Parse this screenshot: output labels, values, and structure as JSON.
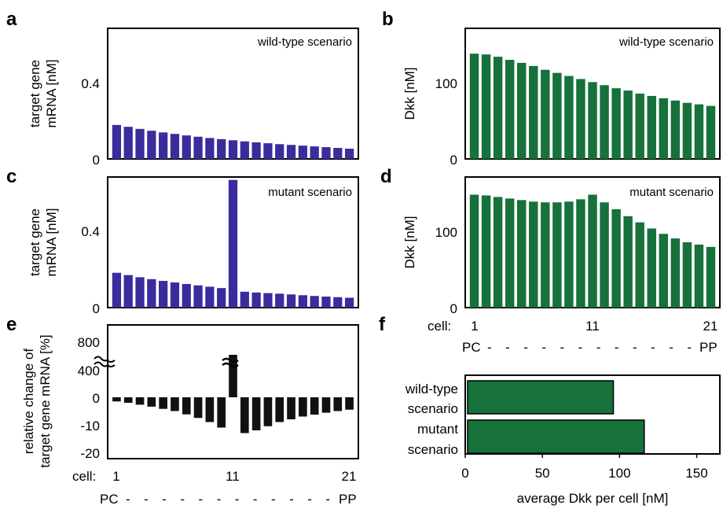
{
  "colors": {
    "mrna": "#3a2c9c",
    "dkk": "#16713a",
    "change": "#111111"
  },
  "panels": {
    "a": "a",
    "b": "b",
    "c": "c",
    "d": "d",
    "e": "e",
    "f": "f"
  },
  "cell_axis": {
    "prefix": "cell:",
    "ticks": [
      "1",
      "11",
      "21"
    ],
    "start": "PC",
    "end": "PP",
    "dashes": "- - - - - - - - - - - -"
  },
  "chart_data": [
    {
      "panel": "a",
      "type": "bar",
      "title": "wild-type scenario",
      "ylabel": [
        "target gene",
        "mRNA [nM]"
      ],
      "yticks": [
        "0.4",
        "0"
      ],
      "ytick_values": [
        0.4,
        0
      ],
      "ylim": [
        0,
        0.7
      ],
      "x": [
        1,
        2,
        3,
        4,
        5,
        6,
        7,
        8,
        9,
        10,
        11,
        12,
        13,
        14,
        15,
        16,
        17,
        18,
        19,
        20,
        21
      ],
      "values": [
        0.182,
        0.172,
        0.161,
        0.151,
        0.142,
        0.134,
        0.126,
        0.119,
        0.112,
        0.106,
        0.1,
        0.094,
        0.089,
        0.084,
        0.079,
        0.075,
        0.071,
        0.067,
        0.063,
        0.059,
        0.055
      ]
    },
    {
      "panel": "b",
      "type": "bar",
      "title": "wild-type scenario",
      "ylabel": [
        "Dkk [nM]"
      ],
      "yticks": [
        "100",
        "0"
      ],
      "ytick_values": [
        100,
        0
      ],
      "ylim": [
        0,
        170
      ],
      "x": [
        1,
        2,
        3,
        4,
        5,
        6,
        7,
        8,
        9,
        10,
        11,
        12,
        13,
        14,
        15,
        16,
        17,
        18,
        19,
        20,
        21
      ],
      "values": [
        137,
        136,
        133,
        129,
        125,
        121,
        116,
        112,
        108,
        104,
        100,
        96,
        92,
        89,
        85,
        82,
        79,
        76,
        73,
        71,
        69
      ]
    },
    {
      "panel": "c",
      "type": "bar",
      "title": "mutant scenario",
      "ylabel": [
        "target gene",
        "mRNA [nM]"
      ],
      "yticks": [
        "0.4",
        "0"
      ],
      "ytick_values": [
        0.4,
        0
      ],
      "ylim": [
        0,
        0.675
      ],
      "x": [
        1,
        2,
        3,
        4,
        5,
        6,
        7,
        8,
        9,
        10,
        11,
        12,
        13,
        14,
        15,
        16,
        17,
        18,
        19,
        20,
        21
      ],
      "values": [
        0.18,
        0.168,
        0.157,
        0.147,
        0.138,
        0.13,
        0.122,
        0.115,
        0.108,
        0.101,
        0.66,
        0.082,
        0.078,
        0.075,
        0.072,
        0.068,
        0.064,
        0.06,
        0.057,
        0.054,
        0.051
      ]
    },
    {
      "panel": "d",
      "type": "bar",
      "title": "mutant scenario",
      "ylabel": [
        "Dkk [nM]"
      ],
      "yticks": [
        "100",
        "0"
      ],
      "ytick_values": [
        100,
        0
      ],
      "ylim": [
        0,
        170
      ],
      "x": [
        1,
        2,
        3,
        4,
        5,
        6,
        7,
        8,
        9,
        10,
        11,
        12,
        13,
        14,
        15,
        16,
        17,
        18,
        19,
        20,
        21
      ],
      "values": [
        147,
        146,
        144,
        142,
        140,
        138,
        137,
        137,
        138,
        141,
        147,
        137,
        128,
        119,
        111,
        103,
        96,
        90,
        85,
        82,
        79
      ]
    },
    {
      "panel": "e",
      "type": "bar",
      "title": "",
      "ylabel": [
        "relative change of",
        "target gene mRNA [%]"
      ],
      "yticks": [
        "800",
        "400",
        "0",
        "-10",
        "-20"
      ],
      "ytick_values": [
        800,
        400,
        0,
        -10,
        -20
      ],
      "axis_break": true,
      "x": [
        1,
        2,
        3,
        4,
        5,
        6,
        7,
        8,
        9,
        10,
        11,
        12,
        13,
        14,
        15,
        16,
        17,
        18,
        19,
        20,
        21
      ],
      "values": [
        -1.5,
        -2.0,
        -2.7,
        -3.4,
        -4.2,
        -5.0,
        -6.2,
        -7.5,
        -9.0,
        -11.0,
        600,
        -13.0,
        -12.0,
        -10.5,
        -9.0,
        -8.0,
        -7.0,
        -6.3,
        -5.6,
        -5.0,
        -4.5
      ]
    },
    {
      "panel": "f",
      "type": "bar",
      "orientation": "horizontal",
      "categories": [
        [
          "wild-type",
          "scenario"
        ],
        [
          "mutant",
          "scenario"
        ]
      ],
      "values": [
        96,
        116
      ],
      "xlabel": "average Dkk per cell [nM]",
      "xticks": [
        "0",
        "50",
        "100",
        "150"
      ],
      "xtick_values": [
        0,
        50,
        100,
        150
      ],
      "xlim": [
        0,
        165
      ]
    }
  ]
}
